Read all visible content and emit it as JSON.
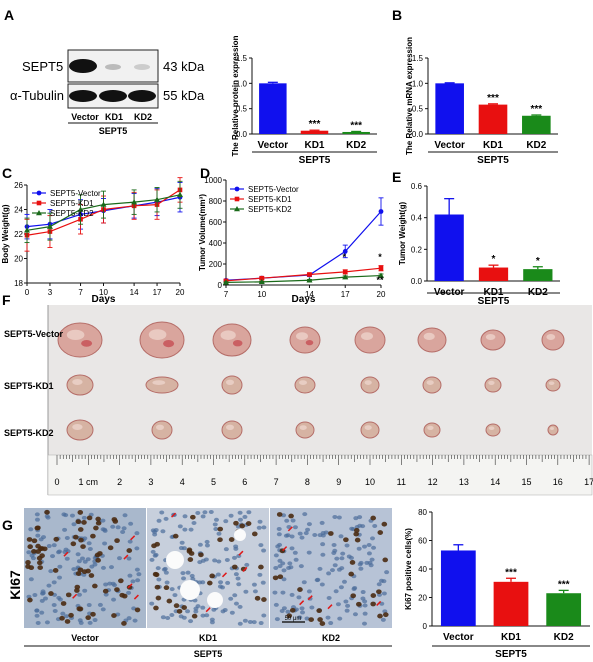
{
  "panels": {
    "A": "A",
    "B": "B",
    "C": "C",
    "D": "D",
    "E": "E",
    "F": "F",
    "G": "G"
  },
  "western": {
    "rows": [
      {
        "name": "SEPT5",
        "size": "43 kDa"
      },
      {
        "name": "α-Tubulin",
        "size": "55 kDa"
      }
    ],
    "lanes": [
      "Vector",
      "KD1",
      "KD2"
    ],
    "group": "SEPT5"
  },
  "chart_data": [
    {
      "id": "protein",
      "type": "bar",
      "categories": [
        "Vector",
        "KD1",
        "KD2"
      ],
      "values": [
        1.0,
        0.065,
        0.04
      ],
      "errors": [
        0.02,
        0.01,
        0.01
      ],
      "sig": [
        "",
        "***",
        "***"
      ],
      "colors": [
        "#1010ee",
        "#e81010",
        "#1a8a1a"
      ],
      "ylabel": "The Relative protein expression",
      "xlabel": "SEPT5",
      "ylim": [
        0,
        1.5
      ],
      "yticks": [
        0.0,
        0.5,
        1.0,
        1.5
      ]
    },
    {
      "id": "mrna",
      "type": "bar",
      "categories": [
        "Vector",
        "KD1",
        "KD2"
      ],
      "values": [
        1.0,
        0.58,
        0.36
      ],
      "errors": [
        0.01,
        0.015,
        0.015
      ],
      "sig": [
        "",
        "***",
        "***"
      ],
      "colors": [
        "#1010ee",
        "#e81010",
        "#1a8a1a"
      ],
      "ylabel": "The Relative mRNA expression",
      "xlabel": "SEPT5",
      "ylim": [
        0,
        1.5
      ],
      "yticks": [
        0.0,
        0.5,
        1.0,
        1.5
      ]
    },
    {
      "id": "bodyweight",
      "type": "line",
      "x": [
        0,
        3,
        7,
        10,
        14,
        17,
        20
      ],
      "series": [
        {
          "name": "SEPT5-Vector",
          "values": [
            22.6,
            22.8,
            23.6,
            23.9,
            24.3,
            24.6,
            25.0
          ],
          "err": [
            1.0,
            1.2,
            1.2,
            1.0,
            1.0,
            1.1,
            1.2
          ],
          "color": "#1010ee",
          "marker": "circle"
        },
        {
          "name": "SEPT5-KD1",
          "values": [
            21.9,
            22.2,
            23.2,
            24.0,
            24.3,
            24.4,
            25.6
          ],
          "err": [
            1.3,
            1.3,
            1.2,
            1.1,
            1.1,
            1.2,
            1.0
          ],
          "color": "#e81010",
          "marker": "square"
        },
        {
          "name": "SEPT5-KD2",
          "values": [
            22.3,
            22.6,
            24.0,
            24.4,
            24.6,
            24.8,
            25.2
          ],
          "err": [
            1.0,
            1.1,
            1.2,
            1.1,
            1.0,
            1.0,
            1.1
          ],
          "color": "#1a6a1a",
          "marker": "triangle"
        }
      ],
      "xlabel": "Days",
      "ylabel": "Body Weight(g)",
      "xticks": [
        0,
        3,
        7,
        10,
        14,
        17,
        20
      ],
      "ylim": [
        18,
        26
      ],
      "yticks": [
        18,
        20,
        22,
        24,
        26
      ],
      "legend": "top-left"
    },
    {
      "id": "tumorvolume",
      "type": "line",
      "x": [
        7,
        10,
        14,
        17,
        20
      ],
      "series": [
        {
          "name": "SEPT5-Vector",
          "values": [
            45,
            65,
            95,
            320,
            700
          ],
          "err": [
            10,
            12,
            15,
            60,
            130
          ],
          "color": "#1010ee",
          "marker": "circle"
        },
        {
          "name": "SEPT5-KD1",
          "values": [
            40,
            65,
            100,
            125,
            160
          ],
          "err": [
            8,
            10,
            15,
            20,
            25
          ],
          "color": "#e81010",
          "marker": "square"
        },
        {
          "name": "SEPT5-KD2",
          "values": [
            25,
            30,
            45,
            75,
            90
          ],
          "err": [
            5,
            6,
            8,
            12,
            15
          ],
          "color": "#1a6a1a",
          "marker": "triangle"
        }
      ],
      "annotations": [
        {
          "x": 17,
          "text": "*"
        },
        {
          "x": 20,
          "text": "*"
        },
        {
          "x": 20,
          "text": "**"
        }
      ],
      "xlabel": "Days",
      "ylabel": "Tumor Volume(mm³)",
      "xticks": [
        7,
        10,
        14,
        17,
        20
      ],
      "ylim": [
        0,
        1000
      ],
      "yticks": [
        0,
        200,
        400,
        600,
        800,
        1000
      ],
      "legend": "top-left"
    },
    {
      "id": "tumorweight",
      "type": "bar",
      "categories": [
        "Vector",
        "KD1",
        "KD2"
      ],
      "values": [
        0.42,
        0.085,
        0.075
      ],
      "errors": [
        0.1,
        0.015,
        0.015
      ],
      "sig": [
        "",
        "*",
        "*"
      ],
      "colors": [
        "#1010ee",
        "#e81010",
        "#1a8a1a"
      ],
      "ylabel": "Tumor Weight(g)",
      "xlabel": "SEPT5",
      "ylim": [
        0,
        0.6
      ],
      "yticks": [
        0.0,
        0.2,
        0.4,
        0.6
      ]
    },
    {
      "id": "ki67",
      "type": "bar",
      "categories": [
        "Vector",
        "KD1",
        "KD2"
      ],
      "values": [
        53,
        31,
        23
      ],
      "errors": [
        4,
        2.5,
        2
      ],
      "sig": [
        "",
        "***",
        "***"
      ],
      "colors": [
        "#1010ee",
        "#e81010",
        "#1a8a1a"
      ],
      "ylabel": "Ki67 positive cells(%)",
      "xlabel": "SEPT5",
      "ylim": [
        0,
        80
      ],
      "yticks": [
        0,
        20,
        40,
        60,
        80
      ]
    }
  ],
  "photo": {
    "rows": [
      "SEPT5-Vector",
      "SEPT5-KD1",
      "SEPT5-KD2"
    ],
    "ruler_numbers": [
      "0",
      "1 cm",
      "2",
      "3",
      "4",
      "5",
      "6",
      "7",
      "8",
      "9",
      "10",
      "11",
      "12",
      "13",
      "14",
      "15",
      "16",
      "17"
    ]
  },
  "ihc": {
    "side_label": "KI67",
    "panels": [
      "Vector",
      "KD1",
      "KD2"
    ],
    "group": "SEPT5",
    "scale_bar": "50 μm"
  }
}
